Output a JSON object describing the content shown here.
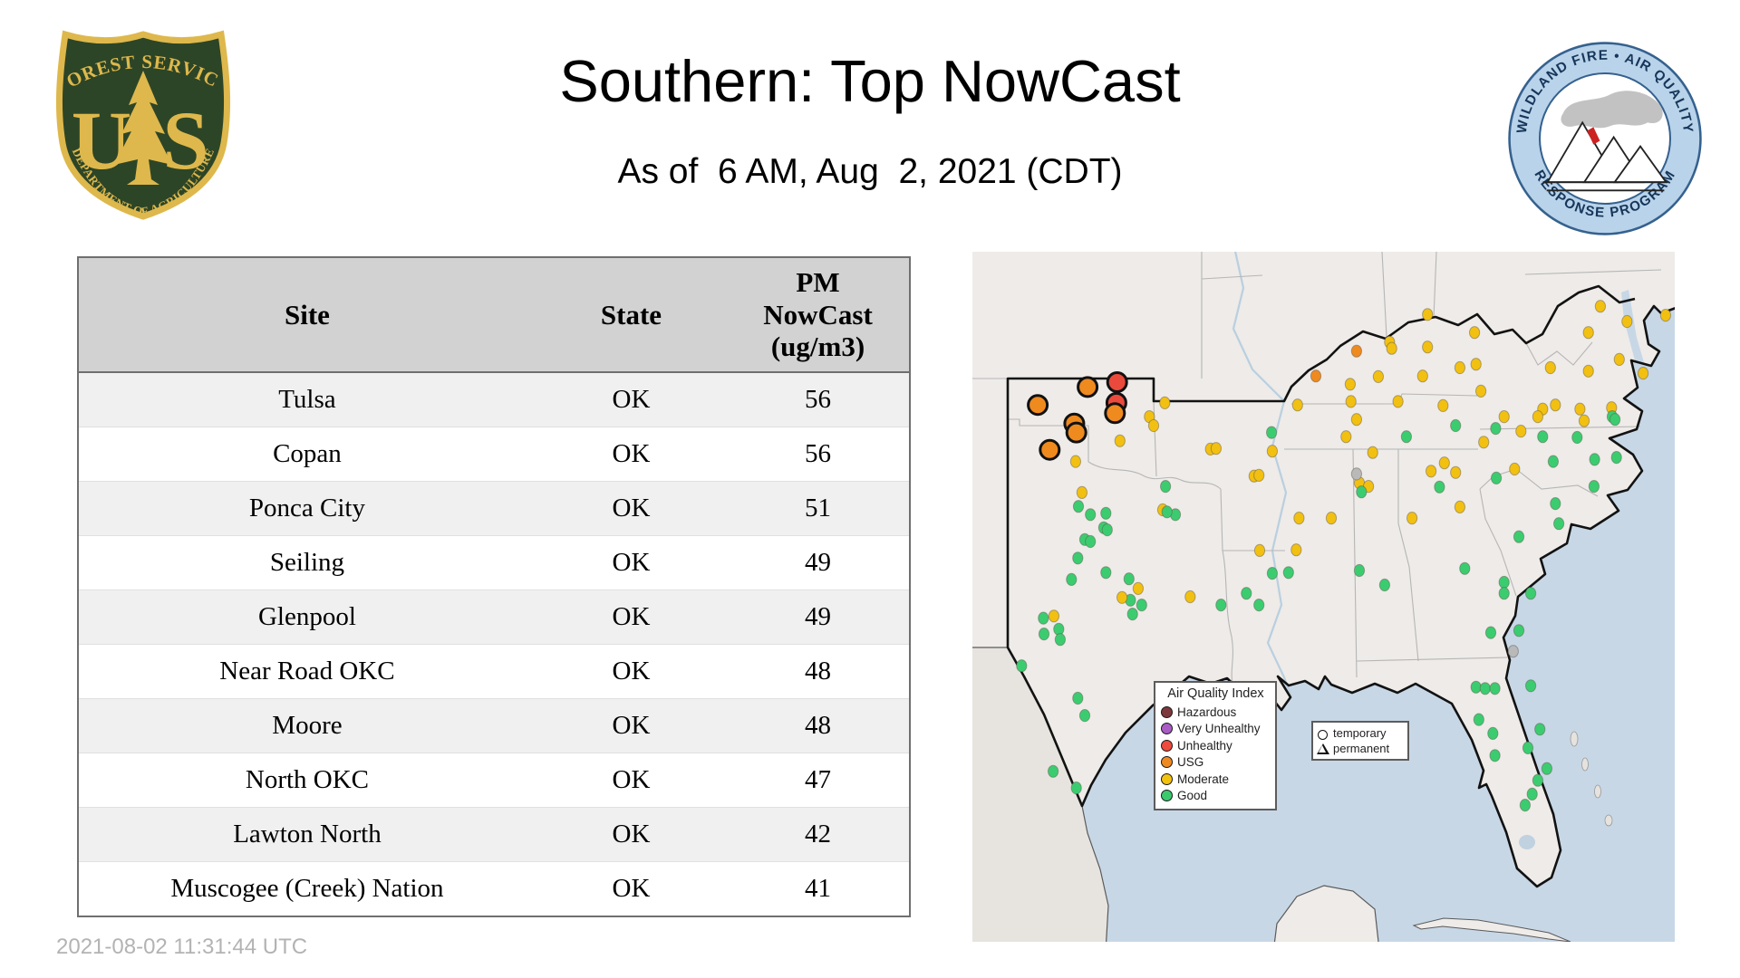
{
  "header": {
    "title": "Southern: Top NowCast",
    "subtitle": "As of  6 AM, Aug  2, 2021 (CDT)",
    "fs_logo": {
      "arc_top": "FOREST SERVICE",
      "letter_left": "U",
      "letter_right": "S",
      "arc_bottom": "DEPARTMENT OF AGRICULTURE",
      "shield_green": "#2d4527",
      "gold": "#deb84c"
    },
    "wfaqrp_logo": {
      "arc_top": "WILDLAND FIRE • AIR QUALITY",
      "arc_bottom": "RESPONSE PROGRAM",
      "ring_blue": "#b9d3ea",
      "text_navy": "#16365a"
    }
  },
  "table": {
    "columns": [
      "Site",
      "State",
      "PM\nNowCast\n(ug/m3)"
    ],
    "rows": [
      {
        "site": "Tulsa",
        "state": "OK",
        "value": "56"
      },
      {
        "site": "Copan",
        "state": "OK",
        "value": "56"
      },
      {
        "site": "Ponca City",
        "state": "OK",
        "value": "51"
      },
      {
        "site": "Seiling",
        "state": "OK",
        "value": "49"
      },
      {
        "site": "Glenpool",
        "state": "OK",
        "value": "49"
      },
      {
        "site": "Near Road OKC",
        "state": "OK",
        "value": "48"
      },
      {
        "site": "Moore",
        "state": "OK",
        "value": "48"
      },
      {
        "site": "North OKC",
        "state": "OK",
        "value": "47"
      },
      {
        "site": "Lawton North",
        "state": "OK",
        "value": "42"
      },
      {
        "site": "Muscogee (Creek) Nation",
        "state": "OK",
        "value": "41"
      }
    ]
  },
  "footer": {
    "timestamp": "2021-08-02 11:31:44 UTC"
  },
  "map": {
    "legend": {
      "title": "Air Quality Index",
      "items": [
        {
          "label": "Hazardous",
          "color": "#7d383c"
        },
        {
          "label": "Very Unhealthy",
          "color": "#a85cc4"
        },
        {
          "label": "Unhealthy",
          "color": "#ee4a3e"
        },
        {
          "label": "USG",
          "color": "#ee8a21"
        },
        {
          "label": "Moderate",
          "color": "#f3c211"
        },
        {
          "label": "Good",
          "color": "#3bc96e"
        }
      ]
    },
    "marker_legend": {
      "temporary": "temporary",
      "permanent": "permanent"
    },
    "colors": {
      "r": "#ea4a3c",
      "o": "#ef8a1f",
      "m": "#f2c011",
      "g": "#3ccc70",
      "x": "#b9b9b9"
    },
    "markers": [
      [
        16.4,
        19.6,
        "o",
        1
      ],
      [
        20.6,
        18.9,
        "r",
        1
      ],
      [
        9.3,
        22.2,
        "o",
        1
      ],
      [
        20.5,
        21.9,
        "r",
        1
      ],
      [
        20.3,
        23.4,
        "o",
        1
      ],
      [
        14.5,
        24.9,
        "o",
        1
      ],
      [
        14.8,
        26.2,
        "o",
        1
      ],
      [
        11.0,
        28.7,
        "o",
        1
      ],
      [
        27.4,
        21.9,
        "m",
        0
      ],
      [
        25.2,
        23.9,
        "m",
        0
      ],
      [
        25.8,
        25.2,
        "m",
        0
      ],
      [
        21.0,
        27.4,
        "m",
        0
      ],
      [
        33.9,
        28.6,
        "m",
        0
      ],
      [
        14.7,
        30.4,
        "m",
        0
      ],
      [
        40.1,
        32.5,
        "m",
        0
      ],
      [
        27.5,
        34.0,
        "g",
        0
      ],
      [
        15.6,
        34.9,
        "m",
        0
      ],
      [
        15.1,
        36.9,
        "g",
        0
      ],
      [
        16.8,
        38.1,
        "g",
        0
      ],
      [
        27.1,
        37.4,
        "m",
        0
      ],
      [
        28.9,
        38.1,
        "g",
        0
      ],
      [
        19.0,
        37.9,
        "g",
        0
      ],
      [
        18.7,
        40.0,
        "g",
        0
      ],
      [
        16.0,
        41.7,
        "g",
        0
      ],
      [
        64.8,
        9.1,
        "m",
        0
      ],
      [
        89.4,
        7.9,
        "m",
        0
      ],
      [
        93.2,
        10.1,
        "m",
        0
      ],
      [
        59.4,
        13.1,
        "m",
        0
      ],
      [
        59.7,
        14.0,
        "m",
        0
      ],
      [
        54.7,
        14.4,
        "o",
        0
      ],
      [
        64.8,
        13.8,
        "m",
        0
      ],
      [
        71.5,
        11.7,
        "m",
        0
      ],
      [
        87.7,
        11.7,
        "m",
        0
      ],
      [
        48.9,
        18.0,
        "o",
        0
      ],
      [
        71.7,
        16.3,
        "m",
        0
      ],
      [
        69.4,
        16.8,
        "m",
        0
      ],
      [
        57.8,
        18.1,
        "m",
        0
      ],
      [
        64.1,
        18.0,
        "m",
        0
      ],
      [
        82.3,
        16.8,
        "m",
        0
      ],
      [
        87.7,
        17.3,
        "m",
        0
      ],
      [
        92.1,
        15.6,
        "m",
        0
      ],
      [
        95.5,
        17.6,
        "m",
        0
      ],
      [
        98.7,
        9.2,
        "m",
        0
      ],
      [
        53.8,
        19.2,
        "m",
        0
      ],
      [
        53.9,
        21.7,
        "m",
        0
      ],
      [
        60.6,
        21.7,
        "m",
        0
      ],
      [
        67.0,
        22.3,
        "m",
        0
      ],
      [
        72.4,
        20.2,
        "m",
        0
      ],
      [
        75.7,
        23.9,
        "m",
        0
      ],
      [
        68.8,
        25.2,
        "g",
        0
      ],
      [
        81.2,
        22.8,
        "m",
        0
      ],
      [
        83.0,
        22.2,
        "m",
        0
      ],
      [
        86.5,
        22.8,
        "m",
        0
      ],
      [
        91.0,
        22.6,
        "m",
        0
      ],
      [
        91.1,
        23.9,
        "g",
        0
      ],
      [
        87.1,
        24.5,
        "m",
        0
      ],
      [
        91.5,
        24.3,
        "g",
        0
      ],
      [
        80.5,
        23.9,
        "m",
        0
      ],
      [
        46.3,
        22.2,
        "m",
        0
      ],
      [
        54.7,
        24.3,
        "m",
        0
      ],
      [
        53.2,
        26.8,
        "m",
        0
      ],
      [
        61.8,
        26.8,
        "g",
        0
      ],
      [
        72.8,
        27.6,
        "m",
        0
      ],
      [
        74.5,
        25.6,
        "g",
        0
      ],
      [
        78.1,
        26.0,
        "m",
        0
      ],
      [
        81.2,
        26.8,
        "g",
        0
      ],
      [
        86.1,
        26.9,
        "g",
        0
      ],
      [
        82.7,
        30.4,
        "g",
        0
      ],
      [
        77.2,
        31.5,
        "m",
        0
      ],
      [
        74.6,
        32.8,
        "g",
        0
      ],
      [
        65.3,
        31.8,
        "m",
        0
      ],
      [
        67.2,
        30.6,
        "m",
        0
      ],
      [
        68.8,
        32.0,
        "m",
        0
      ],
      [
        66.5,
        34.1,
        "g",
        0
      ],
      [
        57.0,
        29.1,
        "m",
        0
      ],
      [
        55.1,
        33.5,
        "m",
        0
      ],
      [
        56.4,
        34.0,
        "m",
        0
      ],
      [
        55.4,
        34.8,
        "g",
        0
      ],
      [
        42.7,
        28.9,
        "m",
        0
      ],
      [
        42.6,
        26.2,
        "g",
        0
      ],
      [
        34.7,
        28.5,
        "m",
        0
      ],
      [
        40.8,
        32.4,
        "m",
        0
      ],
      [
        27.7,
        37.7,
        "g",
        0
      ],
      [
        40.9,
        43.3,
        "m",
        0
      ],
      [
        46.1,
        43.2,
        "m",
        0
      ],
      [
        19.2,
        40.3,
        "g",
        0
      ],
      [
        16.8,
        42.0,
        "g",
        0
      ],
      [
        15.0,
        44.4,
        "g",
        0
      ],
      [
        14.1,
        47.5,
        "g",
        0
      ],
      [
        19.0,
        46.5,
        "g",
        0
      ],
      [
        22.3,
        47.4,
        "g",
        0
      ],
      [
        23.6,
        48.8,
        "m",
        0
      ],
      [
        88.6,
        30.1,
        "g",
        0
      ],
      [
        91.7,
        29.8,
        "g",
        0
      ],
      [
        88.5,
        34.0,
        "g",
        0
      ],
      [
        83.5,
        39.4,
        "g",
        0
      ],
      [
        77.8,
        41.3,
        "g",
        0
      ],
      [
        83.0,
        36.5,
        "g",
        0
      ],
      [
        69.4,
        37.0,
        "m",
        0
      ],
      [
        62.6,
        38.6,
        "m",
        0
      ],
      [
        51.1,
        38.6,
        "m",
        0
      ],
      [
        54.7,
        32.2,
        "x",
        0
      ],
      [
        46.5,
        38.6,
        "m",
        0
      ],
      [
        15.0,
        64.7,
        "g",
        0
      ],
      [
        16.0,
        67.2,
        "g",
        0
      ],
      [
        11.5,
        75.3,
        "g",
        0
      ],
      [
        14.8,
        77.7,
        "g",
        0
      ],
      [
        7.0,
        60.0,
        "g",
        0
      ],
      [
        10.1,
        53.1,
        "g",
        0
      ],
      [
        11.6,
        52.8,
        "m",
        0
      ],
      [
        12.3,
        54.7,
        "g",
        0
      ],
      [
        10.2,
        55.4,
        "g",
        0
      ],
      [
        12.5,
        56.2,
        "g",
        0
      ],
      [
        22.5,
        50.5,
        "g",
        0
      ],
      [
        24.1,
        51.2,
        "g",
        0
      ],
      [
        22.8,
        52.5,
        "g",
        0
      ],
      [
        21.3,
        50.1,
        "m",
        0
      ],
      [
        31.0,
        50.0,
        "m",
        0
      ],
      [
        35.4,
        51.2,
        "g",
        0
      ],
      [
        39.0,
        49.5,
        "g",
        0
      ],
      [
        40.8,
        51.2,
        "g",
        0
      ],
      [
        42.7,
        46.6,
        "g",
        0
      ],
      [
        45.0,
        46.5,
        "g",
        0
      ],
      [
        55.1,
        46.2,
        "g",
        0
      ],
      [
        58.7,
        48.3,
        "g",
        0
      ],
      [
        70.1,
        45.9,
        "g",
        0
      ],
      [
        75.7,
        47.9,
        "g",
        0
      ],
      [
        75.7,
        49.5,
        "g",
        0
      ],
      [
        79.5,
        49.5,
        "g",
        0
      ],
      [
        73.8,
        55.2,
        "g",
        0
      ],
      [
        77.8,
        54.9,
        "g",
        0
      ],
      [
        77.0,
        57.9,
        "x",
        0
      ],
      [
        71.7,
        63.1,
        "g",
        0
      ],
      [
        73.0,
        63.3,
        "g",
        0
      ],
      [
        74.4,
        63.3,
        "g",
        0
      ],
      [
        79.5,
        62.9,
        "g",
        0
      ],
      [
        72.1,
        67.8,
        "g",
        0
      ],
      [
        74.1,
        69.8,
        "g",
        0
      ],
      [
        74.4,
        73.0,
        "g",
        0
      ],
      [
        79.1,
        71.9,
        "g",
        0
      ],
      [
        80.8,
        69.2,
        "g",
        0
      ],
      [
        81.8,
        74.9,
        "g",
        0
      ],
      [
        80.5,
        76.6,
        "g",
        0
      ],
      [
        79.7,
        78.6,
        "g",
        0
      ],
      [
        78.7,
        80.2,
        "g",
        0
      ]
    ]
  }
}
